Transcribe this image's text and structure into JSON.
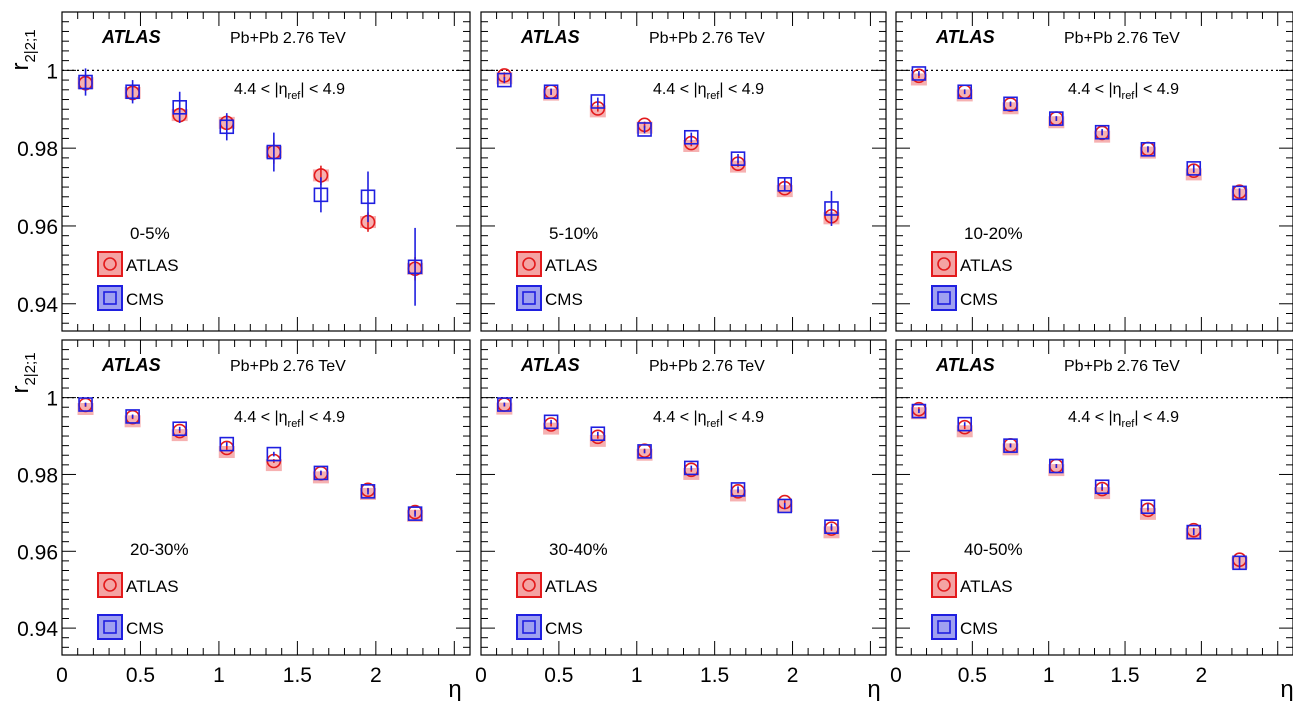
{
  "chart_data": {
    "type": "scatter",
    "layout": "2x3 panel grid, shared x-axis per column and shared y-axis per row",
    "ylabel": {
      "main": "r",
      "sub": "2|2;1"
    },
    "xlabel": "η",
    "xlim": [
      0,
      2.6
    ],
    "ylim": [
      0.933,
      1.015
    ],
    "xticks": [
      0,
      0.5,
      1,
      1.5,
      2
    ],
    "yticks": [
      0.94,
      0.96,
      0.98,
      1
    ],
    "xtick_labels": [
      "0",
      "0.5",
      "1",
      "1.5",
      "2"
    ],
    "ytick_labels": [
      "0.94",
      "0.96",
      "0.98",
      "1"
    ],
    "reference_line": {
      "y": 1,
      "style": "dotted"
    },
    "experiment_label": "ATLAS",
    "system_label": "Pb+Pb 2.76 TeV",
    "eta_ref_label": {
      "prefix": "4.4 < |η",
      "sub": "ref",
      "suffix": "| < 4.9"
    },
    "legend": [
      {
        "name": "ATLAS",
        "marker": "open-circle",
        "color": "#e31a1c",
        "fill": "#f4a3a3"
      },
      {
        "name": "CMS",
        "marker": "open-square",
        "color": "#1f1fe0",
        "fill": "#9fa0f0"
      }
    ],
    "eta_points": [
      0.15,
      0.45,
      0.75,
      1.05,
      1.35,
      1.65,
      1.95,
      2.25
    ],
    "panels": [
      {
        "centrality": "0-5%",
        "series": [
          {
            "name": "ATLAS",
            "values": [
              0.9967,
              0.9942,
              0.9885,
              0.9865,
              0.979,
              0.973,
              0.961,
              0.949
            ],
            "errors": [
              0.002,
              0.002,
              0.002,
              0.002,
              0.003,
              0.0025,
              0.0025,
              0.003
            ]
          },
          {
            "name": "CMS",
            "values": [
              0.997,
              0.9945,
              0.9905,
              0.9855,
              0.979,
              0.968,
              0.9675,
              0.9495
            ],
            "errors": [
              0.0035,
              0.003,
              0.004,
              0.0035,
              0.005,
              0.0045,
              0.0065,
              0.01
            ]
          }
        ]
      },
      {
        "centrality": "5-10%",
        "series": [
          {
            "name": "ATLAS",
            "values": [
              0.9987,
              0.9945,
              0.9902,
              0.986,
              0.9813,
              0.976,
              0.9697,
              0.9625
            ],
            "errors": [
              0.0008,
              0.0008,
              0.0008,
              0.0008,
              0.0008,
              0.0008,
              0.0008,
              0.001
            ]
          },
          {
            "name": "CMS",
            "values": [
              0.9975,
              0.9945,
              0.992,
              0.9848,
              0.9828,
              0.9773,
              0.9707,
              0.9645
            ],
            "errors": [
              0.0008,
              0.0008,
              0.001,
              0.001,
              0.0012,
              0.0012,
              0.0015,
              0.0045
            ]
          }
        ]
      },
      {
        "centrality": "10-20%",
        "series": [
          {
            "name": "ATLAS",
            "values": [
              0.9986,
              0.9945,
              0.9912,
              0.9876,
              0.9839,
              0.9798,
              0.9742,
              0.9688
            ],
            "errors": [
              0.0006,
              0.0006,
              0.0006,
              0.0006,
              0.0006,
              0.0006,
              0.0006,
              0.0008
            ]
          },
          {
            "name": "CMS",
            "values": [
              0.9992,
              0.9945,
              0.9914,
              0.9876,
              0.9841,
              0.9797,
              0.9748,
              0.9685
            ],
            "errors": [
              0.0006,
              0.0006,
              0.0006,
              0.0006,
              0.0008,
              0.0008,
              0.001,
              0.0012
            ]
          }
        ]
      },
      {
        "centrality": "20-30%",
        "series": [
          {
            "name": "ATLAS",
            "values": [
              0.9981,
              0.9949,
              0.9913,
              0.9869,
              0.9835,
              0.9803,
              0.976,
              0.9702
            ],
            "errors": [
              0.0005,
              0.0005,
              0.0005,
              0.0005,
              0.0005,
              0.0005,
              0.0005,
              0.0006
            ]
          },
          {
            "name": "CMS",
            "values": [
              0.9982,
              0.9951,
              0.9919,
              0.9879,
              0.9853,
              0.9804,
              0.9756,
              0.9698
            ],
            "errors": [
              0.0005,
              0.0005,
              0.0005,
              0.0005,
              0.0006,
              0.0006,
              0.0008,
              0.0008
            ]
          }
        ]
      },
      {
        "centrality": "30-40%",
        "series": [
          {
            "name": "ATLAS",
            "values": [
              0.9982,
              0.993,
              0.9898,
              0.9862,
              0.9812,
              0.9756,
              0.9728,
              0.9659
            ],
            "errors": [
              0.0005,
              0.0005,
              0.0005,
              0.0005,
              0.0005,
              0.0005,
              0.0005,
              0.0006
            ]
          },
          {
            "name": "CMS",
            "values": [
              0.9982,
              0.9937,
              0.9906,
              0.986,
              0.9817,
              0.9761,
              0.9718,
              0.9664
            ],
            "errors": [
              0.0005,
              0.0005,
              0.0005,
              0.0005,
              0.0006,
              0.0008,
              0.0008,
              0.0008
            ]
          }
        ]
      },
      {
        "centrality": "40-50%",
        "series": [
          {
            "name": "ATLAS",
            "values": [
              0.997,
              0.9923,
              0.9876,
              0.9822,
              0.9762,
              0.9708,
              0.9655,
              0.9578
            ],
            "errors": [
              0.0005,
              0.0005,
              0.0005,
              0.0005,
              0.0005,
              0.0005,
              0.0006,
              0.0008
            ]
          },
          {
            "name": "CMS",
            "values": [
              0.9965,
              0.9931,
              0.9875,
              0.9822,
              0.9768,
              0.9716,
              0.965,
              0.957
            ],
            "errors": [
              0.0005,
              0.0005,
              0.0005,
              0.0005,
              0.0008,
              0.0008,
              0.0008,
              0.0015
            ]
          }
        ]
      }
    ]
  }
}
